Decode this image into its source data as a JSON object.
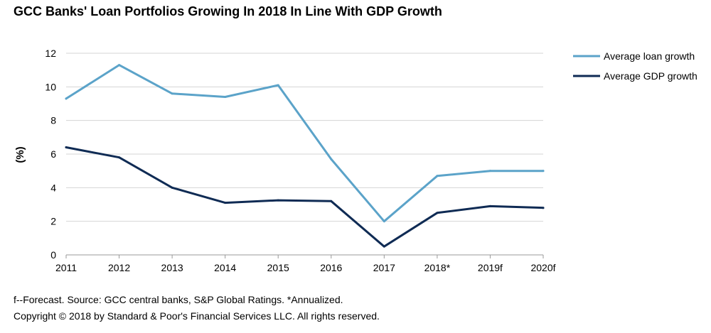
{
  "chart_data": {
    "type": "line",
    "title": "GCC Banks' Loan Portfolios Growing In 2018 In Line With GDP Growth",
    "xlabel": "",
    "ylabel": "(%)",
    "categories": [
      "2011",
      "2012",
      "2013",
      "2014",
      "2015",
      "2016",
      "2017",
      "2018*",
      "2019f",
      "2020f"
    ],
    "ylim": [
      0,
      12
    ],
    "yticks": [
      "0",
      "2",
      "4",
      "6",
      "8",
      "10",
      "12"
    ],
    "grid": true,
    "legend_position": "top-right",
    "series": [
      {
        "name": "Average loan growth",
        "color": "#5ba3c9",
        "values": [
          9.3,
          11.3,
          9.6,
          9.4,
          10.1,
          5.7,
          2.0,
          4.7,
          5.0,
          5.0
        ]
      },
      {
        "name": "Average GDP growth",
        "color": "#0f2b54",
        "values": [
          6.4,
          5.8,
          4.0,
          3.1,
          3.25,
          3.2,
          0.5,
          2.5,
          2.9,
          2.8
        ]
      }
    ]
  },
  "footnotes": {
    "line1": "f--Forecast. Source: GCC central banks, S&P Global Ratings. *Annualized.",
    "line2": "Copyright © 2018 by Standard & Poor's Financial Services LLC. All rights reserved."
  }
}
